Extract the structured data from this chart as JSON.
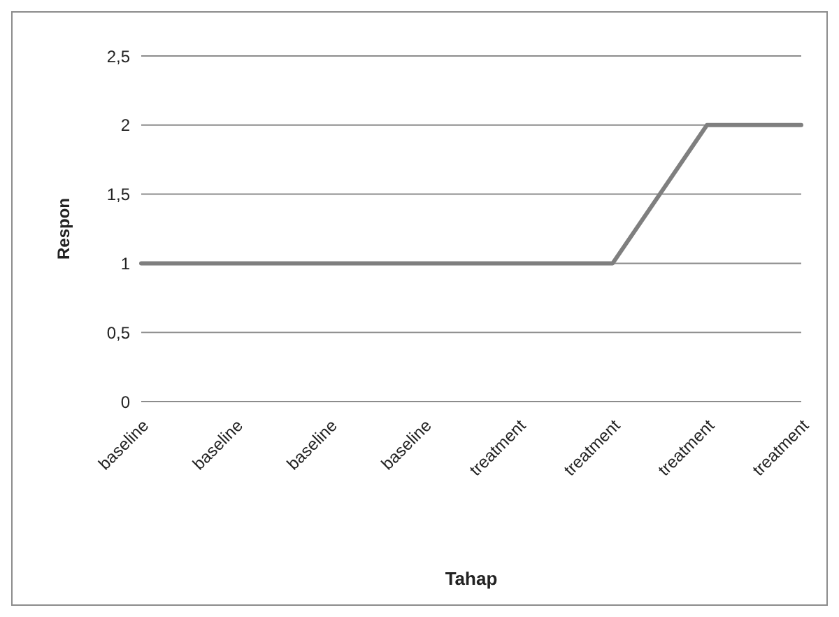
{
  "chart_data": {
    "type": "line",
    "xlabel": "Tahap",
    "ylabel": "Respon",
    "categories": [
      "baseline",
      "baseline",
      "baseline",
      "baseline",
      "treatment",
      "treatment",
      "treatment",
      "treatment"
    ],
    "series": [
      {
        "color": "#7f7f7f",
        "values": [
          1,
          1,
          1,
          1,
          1,
          1,
          2,
          2
        ]
      }
    ],
    "ylim": [
      0,
      2.5
    ],
    "yticks": [
      0,
      {
        "value": 0.5,
        "label": "0,5"
      },
      1,
      {
        "value": 1.5,
        "label": "1,5"
      },
      2,
      {
        "value": 2.5,
        "label": "2,5"
      }
    ],
    "grid": "y",
    "legend": false,
    "marker": "none",
    "line_style": "solid"
  }
}
